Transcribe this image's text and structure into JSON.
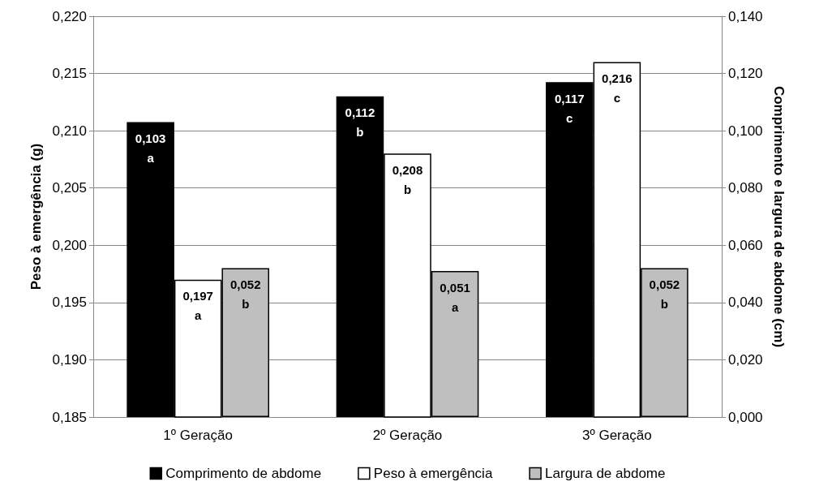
{
  "chart_data": {
    "type": "bar",
    "ylabel": "Peso à emergência (g)",
    "y2label": "Comprimento e largura de abdome (cm)",
    "categories": [
      "1º Geração",
      "2º Geração",
      "3º Geração"
    ],
    "series": [
      {
        "name": "Comprimento de abdome",
        "color": "#000000",
        "axis": "y2",
        "values": [
          0.103,
          0.112,
          0.117
        ],
        "value_labels": [
          "0,103\na",
          "0,112\nb",
          "0,117\nc"
        ]
      },
      {
        "name": "Peso à emergência",
        "color": "#ffffff",
        "values": [
          0.197,
          0.208,
          0.216
        ],
        "value_labels": [
          "0,197\na",
          "0,208\nb",
          "0,216\nc"
        ]
      },
      {
        "name": "Largura de abdome",
        "color": "#bfbfbf",
        "axis": "y2",
        "values": [
          0.052,
          0.051,
          0.052
        ],
        "value_labels": [
          "0,052\nb",
          "0,051\na",
          "0,052\nb"
        ]
      }
    ],
    "ylim": [
      0.185,
      0.22
    ],
    "yticks": [
      {
        "value": 0.185,
        "label": "0,185"
      },
      {
        "value": 0.19,
        "label": "0,190"
      },
      {
        "value": 0.195,
        "label": "0,195"
      },
      {
        "value": 0.2,
        "label": "0,200"
      },
      {
        "value": 0.205,
        "label": "0,205"
      },
      {
        "value": 0.21,
        "label": "0,210"
      },
      {
        "value": 0.215,
        "label": "0,215"
      },
      {
        "value": 0.22,
        "label": "0,220"
      }
    ],
    "y2lim": [
      0,
      0.14
    ],
    "y2ticks": [
      {
        "value": 0,
        "label": "0,000"
      },
      {
        "value": 0.02,
        "label": "0,020"
      },
      {
        "value": 0.04,
        "label": "0,040"
      },
      {
        "value": 0.06,
        "label": "0,060"
      },
      {
        "value": 0.08,
        "label": "0,080"
      },
      {
        "value": 0.1,
        "label": "0,100"
      },
      {
        "value": 0.12,
        "label": "0,120"
      },
      {
        "value": 0.14,
        "label": "0,140"
      }
    ],
    "grid": "y",
    "legend": "bottom"
  }
}
